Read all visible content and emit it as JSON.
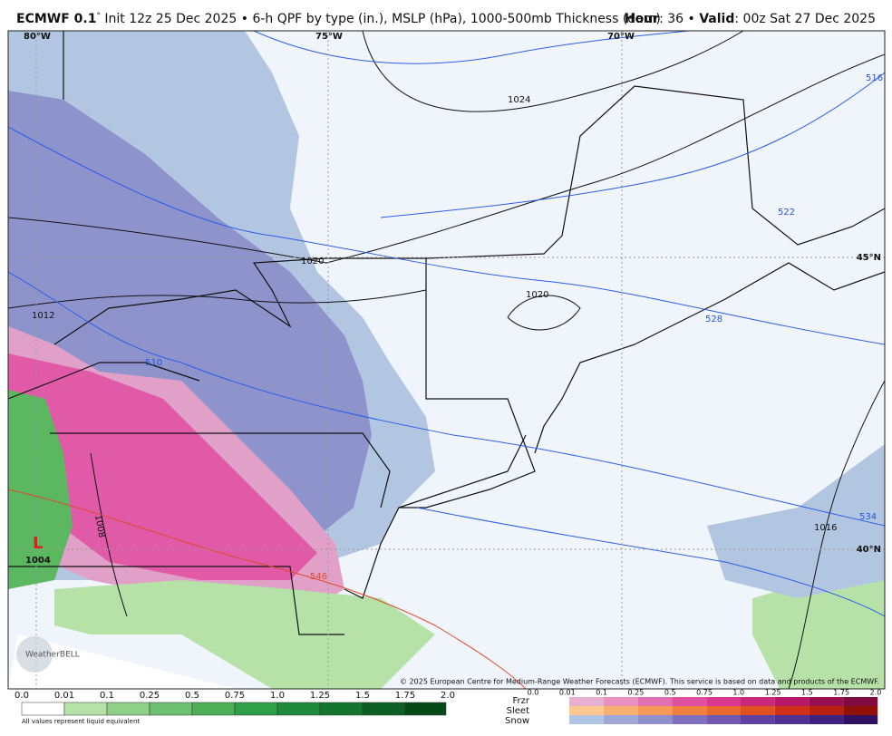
{
  "header": {
    "model": "ECMWF 0.1",
    "degree": "°",
    "description": " Init 12z 25 Dec 2025 • 6-h QPF by type (in.), MSLP (hPa), 1000-500mb Thickness (dam)",
    "hour_label": "Hour",
    "hour_value": ": 36 • ",
    "valid_label": "Valid",
    "valid_value": ": 00z Sat 27 Dec 2025"
  },
  "map": {
    "longitudes": [
      "80°W",
      "75°W",
      "70°W"
    ],
    "latitudes": [
      "45°N",
      "40°N"
    ],
    "isobars": [
      "1024",
      "1020",
      "1020",
      "1016",
      "1012",
      "1008"
    ],
    "thickness": [
      "510",
      "516",
      "522",
      "528",
      "534",
      "546"
    ],
    "low": {
      "symbol": "L",
      "pressure": "1004"
    },
    "copyright": "© 2025 European Centre for Medium-Range Weather Forecasts (ECMWF). This service is based on data and products of the ECMWF.",
    "logo": "WeatherBELL"
  },
  "legend": {
    "rain_scale": [
      "0.0",
      "0.01",
      "0.1",
      "0.25",
      "0.5",
      "0.75",
      "1.0",
      "1.25",
      "1.5",
      "1.75",
      "2.0"
    ],
    "note": "All values represent liquid equivalent",
    "types": [
      "Frzr",
      "Sleet",
      "Snow"
    ],
    "type_scale": [
      "0.0",
      "0.01",
      "0.1",
      "0.25",
      "0.5",
      "0.75",
      "1.0",
      "1.25",
      "1.5",
      "1.75",
      "2.0"
    ]
  }
}
